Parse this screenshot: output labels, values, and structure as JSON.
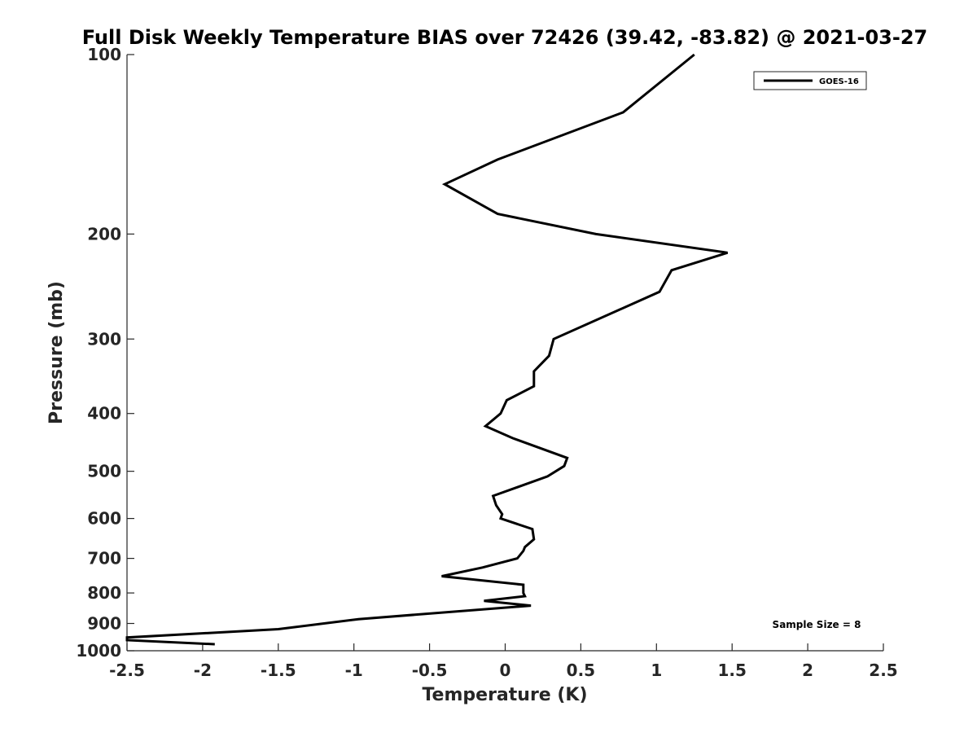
{
  "chart_data": {
    "type": "line",
    "title": "Full Disk Weekly Temperature BIAS over 72426 (39.42, -83.82) @ 2021-03-27",
    "xlabel": "Temperature (K)",
    "ylabel": "Pressure (mb)",
    "xlim": [
      -2.5,
      2.5
    ],
    "ylim": [
      100,
      1000
    ],
    "yscale": "log",
    "yreversed": true,
    "xticks": [
      -2.5,
      -2,
      -1.5,
      -1,
      -0.5,
      0,
      0.5,
      1,
      1.5,
      2,
      2.5
    ],
    "xtick_labels": [
      "-2.5",
      "-2",
      "-1.5",
      "-1",
      "-0.5",
      "0",
      "0.5",
      "1",
      "1.5",
      "2",
      "2.5"
    ],
    "yticks": [
      100,
      200,
      300,
      400,
      500,
      600,
      700,
      800,
      900,
      1000
    ],
    "ytick_labels": [
      "100",
      "200",
      "300",
      "400",
      "500",
      "600",
      "700",
      "800",
      "900",
      "1000"
    ],
    "grid": false,
    "legend_position": "top-right",
    "series": [
      {
        "name": "GOES-16",
        "color": "#000000",
        "points": [
          [
            1.25,
            100
          ],
          [
            0.78,
            125
          ],
          [
            -0.05,
            150
          ],
          [
            -0.4,
            165
          ],
          [
            -0.05,
            185
          ],
          [
            0.6,
            200
          ],
          [
            1.47,
            215
          ],
          [
            1.1,
            230
          ],
          [
            1.02,
            250
          ],
          [
            0.32,
            300
          ],
          [
            0.29,
            320
          ],
          [
            0.19,
            340
          ],
          [
            0.19,
            360
          ],
          [
            0.01,
            380
          ],
          [
            -0.03,
            400
          ],
          [
            -0.13,
            420
          ],
          [
            0.05,
            440
          ],
          [
            0.41,
            475
          ],
          [
            0.39,
            490
          ],
          [
            0.28,
            510
          ],
          [
            -0.08,
            550
          ],
          [
            -0.06,
            570
          ],
          [
            -0.02,
            590
          ],
          [
            -0.03,
            600
          ],
          [
            0.18,
            625
          ],
          [
            0.19,
            650
          ],
          [
            0.13,
            670
          ],
          [
            0.12,
            680
          ],
          [
            0.08,
            700
          ],
          [
            -0.15,
            725
          ],
          [
            -0.42,
            750
          ],
          [
            0.12,
            775
          ],
          [
            0.12,
            800
          ],
          [
            0.13,
            810
          ],
          [
            -0.14,
            825
          ],
          [
            0.17,
            840
          ],
          [
            -0.97,
            885
          ],
          [
            -1.5,
            920
          ],
          [
            -2.5,
            950
          ],
          [
            -2.5,
            960
          ],
          [
            -1.92,
            975
          ]
        ]
      }
    ],
    "annotations": [
      {
        "text": "Sample Size = 8",
        "position": "bottom-right"
      }
    ]
  }
}
